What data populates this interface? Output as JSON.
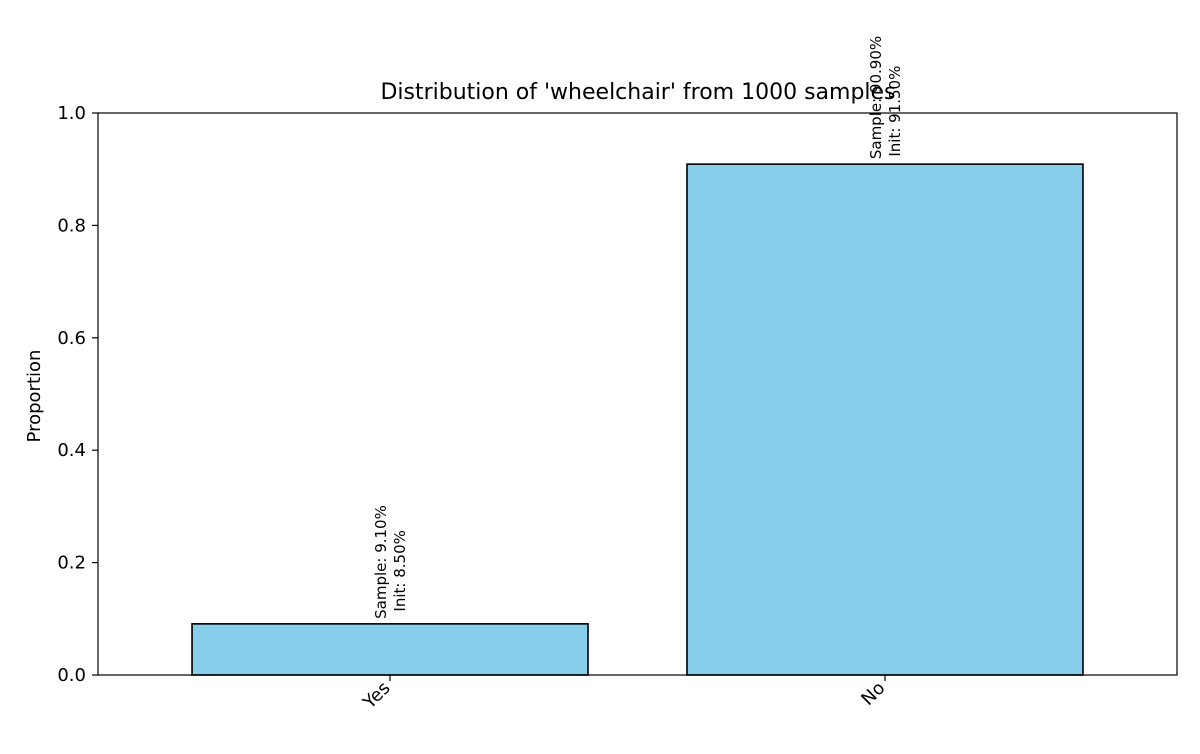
{
  "chart_data": {
    "type": "bar",
    "title": "Distribution of 'wheelchair' from 1000 samples",
    "xlabel": "",
    "ylabel": "Proportion",
    "categories": [
      "Yes",
      "No"
    ],
    "values": [
      0.091,
      0.909
    ],
    "bar_labels": [
      {
        "line1": "Sample: 9.10%",
        "line2": "Init: 8.50%"
      },
      {
        "line1": "Sample: 90.90%",
        "line2": "Init: 91.50%"
      }
    ],
    "ylim": [
      0,
      1.0
    ],
    "yticks": [
      0.0,
      0.2,
      0.4,
      0.6,
      0.8,
      1.0
    ],
    "ytick_labels": [
      "0.0",
      "0.2",
      "0.4",
      "0.6",
      "0.8",
      "1.0"
    ],
    "grid": false,
    "colors": {
      "bar_fill": "#87ceeb",
      "bar_edge": "#000000",
      "axis": "#000000",
      "text": "#000000"
    }
  }
}
